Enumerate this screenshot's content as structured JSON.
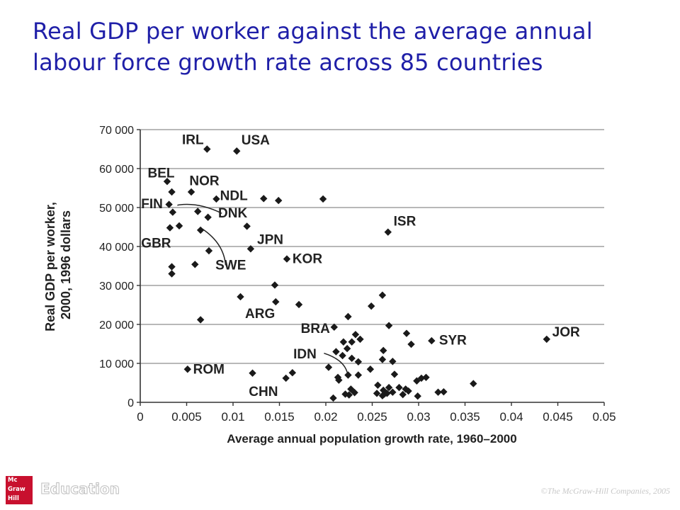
{
  "title": "Real GDP per worker against the average annual labour force growth rate across 85 countries",
  "footer": {
    "logo_lines": [
      "Mc",
      "Graw",
      "Hill"
    ],
    "logo_word": "Education",
    "copyright": "©The McGraw-Hill Companies, 2005"
  },
  "colors": {
    "title": "#1f1fa8",
    "points": "#1a1a1a",
    "grid": "#a0a0a0",
    "logo": "#c8102e"
  },
  "chart_data": {
    "type": "scatter",
    "xlabel": "Average annual population growth rate, 1960–2000",
    "ylabel_lines": [
      "Real GDP per worker,",
      "2000, 1996 dollars"
    ],
    "xlim": [
      0,
      0.05
    ],
    "ylim": [
      0,
      70000
    ],
    "x_ticks": [
      0,
      0.005,
      0.01,
      0.015,
      0.02,
      0.025,
      0.03,
      0.035,
      0.04,
      0.045,
      0.05
    ],
    "x_tick_labels": [
      "0",
      "0.005",
      "0.01",
      "0.015",
      "0.02",
      "0.025",
      "0.03",
      "0.035",
      "0.04",
      "0.045",
      "0.05"
    ],
    "y_ticks": [
      0,
      10000,
      20000,
      30000,
      40000,
      50000,
      60000,
      70000
    ],
    "y_tick_labels": [
      "0",
      "10 000",
      "20 000",
      "30 000",
      "40 000",
      "50 000",
      "60 000",
      "70 000"
    ],
    "grid": "horizontal",
    "points": [
      [
        0.0072,
        65000
      ],
      [
        0.0104,
        64500
      ],
      [
        0.0029,
        56700
      ],
      [
        0.0034,
        54000
      ],
      [
        0.0055,
        54000
      ],
      [
        0.0082,
        52200
      ],
      [
        0.0133,
        52300
      ],
      [
        0.0149,
        51800
      ],
      [
        0.0197,
        52200
      ],
      [
        0.0031,
        50800
      ],
      [
        0.0035,
        48800
      ],
      [
        0.0062,
        49000
      ],
      [
        0.0073,
        47500
      ],
      [
        0.0042,
        45300
      ],
      [
        0.0032,
        44800
      ],
      [
        0.0065,
        44200
      ],
      [
        0.0115,
        45200
      ],
      [
        0.0267,
        43700
      ],
      [
        0.0119,
        39400
      ],
      [
        0.0074,
        38900
      ],
      [
        0.0158,
        36800
      ],
      [
        0.0034,
        34800
      ],
      [
        0.0059,
        35400
      ],
      [
        0.0034,
        33000
      ],
      [
        0.0145,
        30100
      ],
      [
        0.0108,
        27100
      ],
      [
        0.0146,
        25800
      ],
      [
        0.0171,
        25100
      ],
      [
        0.0065,
        21200
      ],
      [
        0.0261,
        27500
      ],
      [
        0.0249,
        24700
      ],
      [
        0.0224,
        22000
      ],
      [
        0.0268,
        19700
      ],
      [
        0.0209,
        19300
      ],
      [
        0.0287,
        17700
      ],
      [
        0.0232,
        17400
      ],
      [
        0.0219,
        15500
      ],
      [
        0.0237,
        16200
      ],
      [
        0.0228,
        15500
      ],
      [
        0.0292,
        14900
      ],
      [
        0.0314,
        15800
      ],
      [
        0.0438,
        16200
      ],
      [
        0.0223,
        13800
      ],
      [
        0.0262,
        13300
      ],
      [
        0.0211,
        13000
      ],
      [
        0.0218,
        12000
      ],
      [
        0.0228,
        11300
      ],
      [
        0.0235,
        10400
      ],
      [
        0.0261,
        11000
      ],
      [
        0.0272,
        10500
      ],
      [
        0.0203,
        9000
      ],
      [
        0.0248,
        8500
      ],
      [
        0.0051,
        8500
      ],
      [
        0.0121,
        7500
      ],
      [
        0.0164,
        7600
      ],
      [
        0.0157,
        6200
      ],
      [
        0.0213,
        6400
      ],
      [
        0.0224,
        7000
      ],
      [
        0.0235,
        7000
      ],
      [
        0.0274,
        7200
      ],
      [
        0.0303,
        6200
      ],
      [
        0.0298,
        5500
      ],
      [
        0.0308,
        6400
      ],
      [
        0.0359,
        4800
      ],
      [
        0.0256,
        4400
      ],
      [
        0.0268,
        3800
      ],
      [
        0.0279,
        3800
      ],
      [
        0.0289,
        2900
      ],
      [
        0.0262,
        3100
      ],
      [
        0.0266,
        2300
      ],
      [
        0.0283,
        2000
      ],
      [
        0.0299,
        1600
      ],
      [
        0.0321,
        2600
      ],
      [
        0.0327,
        2700
      ],
      [
        0.0221,
        2100
      ],
      [
        0.0231,
        2500
      ],
      [
        0.0227,
        3400
      ],
      [
        0.0261,
        1700
      ],
      [
        0.0208,
        1100
      ],
      [
        0.0272,
        2600
      ],
      [
        0.0255,
        2300
      ],
      [
        0.0225,
        1900
      ],
      [
        0.0263,
        2100
      ],
      [
        0.0214,
        5700
      ],
      [
        0.0286,
        3400
      ]
    ],
    "country_labels": [
      {
        "text": "IRL",
        "x": 0.0045,
        "y": 66300
      },
      {
        "text": "USA",
        "x": 0.0109,
        "y": 66200
      },
      {
        "text": "BEL",
        "x": 0.0008,
        "y": 57700
      },
      {
        "text": "NOR",
        "x": 0.0053,
        "y": 55700
      },
      {
        "text": "NDL",
        "x": 0.0086,
        "y": 51900
      },
      {
        "text": "FIN",
        "x": 0.0001,
        "y": 49800
      },
      {
        "text": "DNK",
        "x": 0.0084,
        "y": 47500
      },
      {
        "text": "GBR",
        "x": 0.0001,
        "y": 39700
      },
      {
        "text": "JPN",
        "x": 0.0126,
        "y": 40600
      },
      {
        "text": "ISR",
        "x": 0.0273,
        "y": 45400
      },
      {
        "text": "KOR",
        "x": 0.0164,
        "y": 35700
      },
      {
        "text": "SWE",
        "x": 0.0081,
        "y": 34100
      },
      {
        "text": "ARG",
        "x": 0.0113,
        "y": 21600
      },
      {
        "text": "BRA",
        "x": 0.0173,
        "y": 17800
      },
      {
        "text": "SYR",
        "x": 0.0322,
        "y": 14800
      },
      {
        "text": "JOR",
        "x": 0.0444,
        "y": 16900
      },
      {
        "text": "IDN",
        "x": 0.0165,
        "y": 11300
      },
      {
        "text": "ROM",
        "x": 0.0057,
        "y": 7400
      },
      {
        "text": "CHN",
        "x": 0.0117,
        "y": 1600
      }
    ],
    "leader_lines": [
      [
        [
          0.0088,
          48500
        ],
        [
          0.0062,
          51500
        ],
        [
          0.004,
          50600
        ]
      ],
      [
        [
          0.0092,
          35200
        ],
        [
          0.009,
          40800
        ],
        [
          0.0067,
          44500
        ]
      ],
      [
        [
          0.0198,
          12600
        ],
        [
          0.0219,
          11000
        ],
        [
          0.0223,
          7700
        ]
      ]
    ]
  }
}
